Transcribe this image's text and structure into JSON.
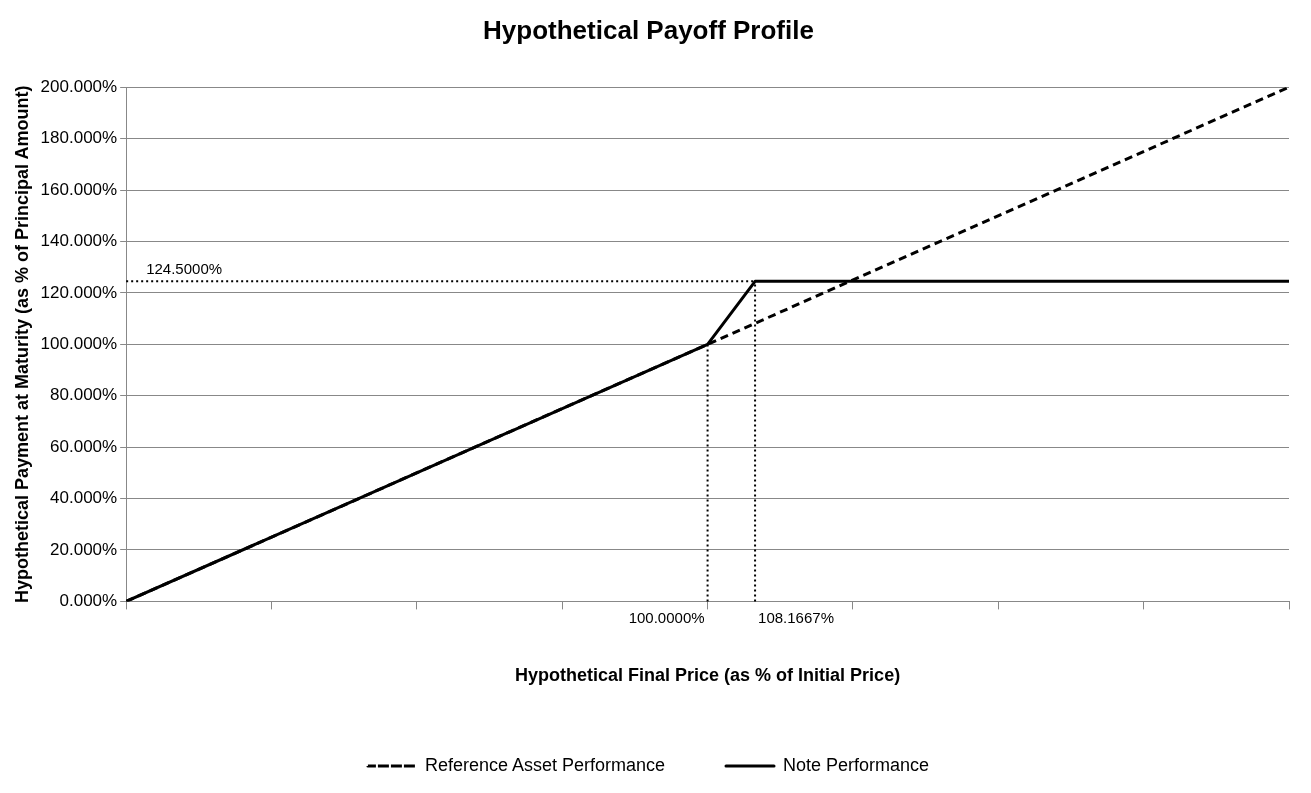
{
  "chart_data": {
    "type": "line",
    "title": "Hypothetical Payoff Profile",
    "xlabel": "Hypothetical Final Price (as % of Initial Price)",
    "ylabel": "Hypothetical Payment at Maturity (as % of Principal Amount)",
    "xlim": [
      0,
      200
    ],
    "xticks": [
      {
        "value": 0,
        "label": null
      },
      {
        "value": 25,
        "label": null
      },
      {
        "value": 50,
        "label": null
      },
      {
        "value": 75,
        "label": null
      },
      {
        "value": 100,
        "label": null
      },
      {
        "value": 125,
        "label": null
      },
      {
        "value": 150,
        "label": null
      },
      {
        "value": 175,
        "label": null
      },
      {
        "value": 200,
        "label": null
      }
    ],
    "ylim": [
      0,
      200
    ],
    "yticks": [
      {
        "value": 0,
        "label": "0.000%"
      },
      {
        "value": 20,
        "label": "20.000%"
      },
      {
        "value": 40,
        "label": "40.000%"
      },
      {
        "value": 60,
        "label": "60.000%"
      },
      {
        "value": 80,
        "label": "80.000%"
      },
      {
        "value": 100,
        "label": "100.000%"
      },
      {
        "value": 120,
        "label": "120.000%"
      },
      {
        "value": 140,
        "label": "140.000%"
      },
      {
        "value": 160,
        "label": "160.000%"
      },
      {
        "value": 180,
        "label": "180.000%"
      },
      {
        "value": 200,
        "label": "200.000%"
      }
    ],
    "grid": "y",
    "legend": "bottom",
    "marker": "none",
    "series": [
      {
        "name": "Reference Asset Performance",
        "color": "#000000",
        "line_style": "dashed",
        "x": [
          0,
          200
        ],
        "values": [
          0,
          200
        ]
      },
      {
        "name": "Note Performance",
        "color": "#000000",
        "line_style": "solid",
        "x": [
          0,
          100,
          108.1667,
          200
        ],
        "values": [
          0,
          100,
          124.5,
          124.5
        ]
      }
    ],
    "ref_lines": [
      {
        "axis": "y",
        "value": 124.5,
        "label": "124.5000%",
        "color": "#000000",
        "line_style": "dotted"
      },
      {
        "axis": "x",
        "value": 100,
        "label": "100.0000%",
        "color": "#000000",
        "line_style": "dotted"
      },
      {
        "axis": "x",
        "value": 108.1667,
        "label": "108.1667%",
        "color": "#000000",
        "line_style": "dotted"
      }
    ]
  }
}
